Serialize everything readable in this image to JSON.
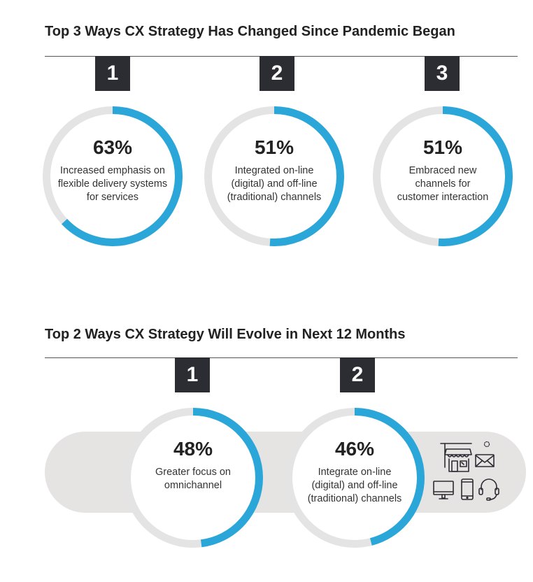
{
  "colors": {
    "accent": "#2aa6d8",
    "track": "#e4e4e4",
    "badge": "#2b2d33",
    "pill": "#e6e3e3"
  },
  "section1": {
    "title": "Top 3 Ways CX Strategy Has Changed Since Pandemic Began",
    "items": [
      {
        "rank": "1",
        "percent_label": "63%",
        "value": 63,
        "description": "Increased emphasis on flexible delivery systems for services"
      },
      {
        "rank": "2",
        "percent_label": "51%",
        "value": 51,
        "description": "Integrated on-line (digital) and off-line (traditional) channels"
      },
      {
        "rank": "3",
        "percent_label": "51%",
        "value": 51,
        "description": "Embraced new channels for customer interaction"
      }
    ]
  },
  "section2": {
    "title": "Top 2 Ways CX Strategy Will Evolve in Next 12 Months",
    "items": [
      {
        "rank": "1",
        "percent_label": "48%",
        "value": 48,
        "description": "Greater focus on omnichannel"
      },
      {
        "rank": "2",
        "percent_label": "46%",
        "value": 46,
        "description": "Integrate on-line (digital) and off-line (traditional) channels"
      }
    ],
    "icons": [
      "storefront-icon",
      "envelope-icon",
      "desktop-monitor-icon",
      "smartphone-icon",
      "headset-icon"
    ]
  },
  "chart_data": [
    {
      "type": "donut",
      "title": "Top 3 Ways CX Strategy Has Changed Since Pandemic Began",
      "categories": [
        "Increased emphasis on flexible delivery systems for services",
        "Integrated on-line (digital) and off-line (traditional) channels",
        "Embraced new channels for customer interaction"
      ],
      "values": [
        63,
        51,
        51
      ],
      "unit": "%"
    },
    {
      "type": "donut",
      "title": "Top 2 Ways CX Strategy Will Evolve in Next 12 Months",
      "categories": [
        "Greater focus on omnichannel",
        "Integrate on-line (digital) and off-line (traditional) channels"
      ],
      "values": [
        48,
        46
      ],
      "unit": "%"
    }
  ]
}
